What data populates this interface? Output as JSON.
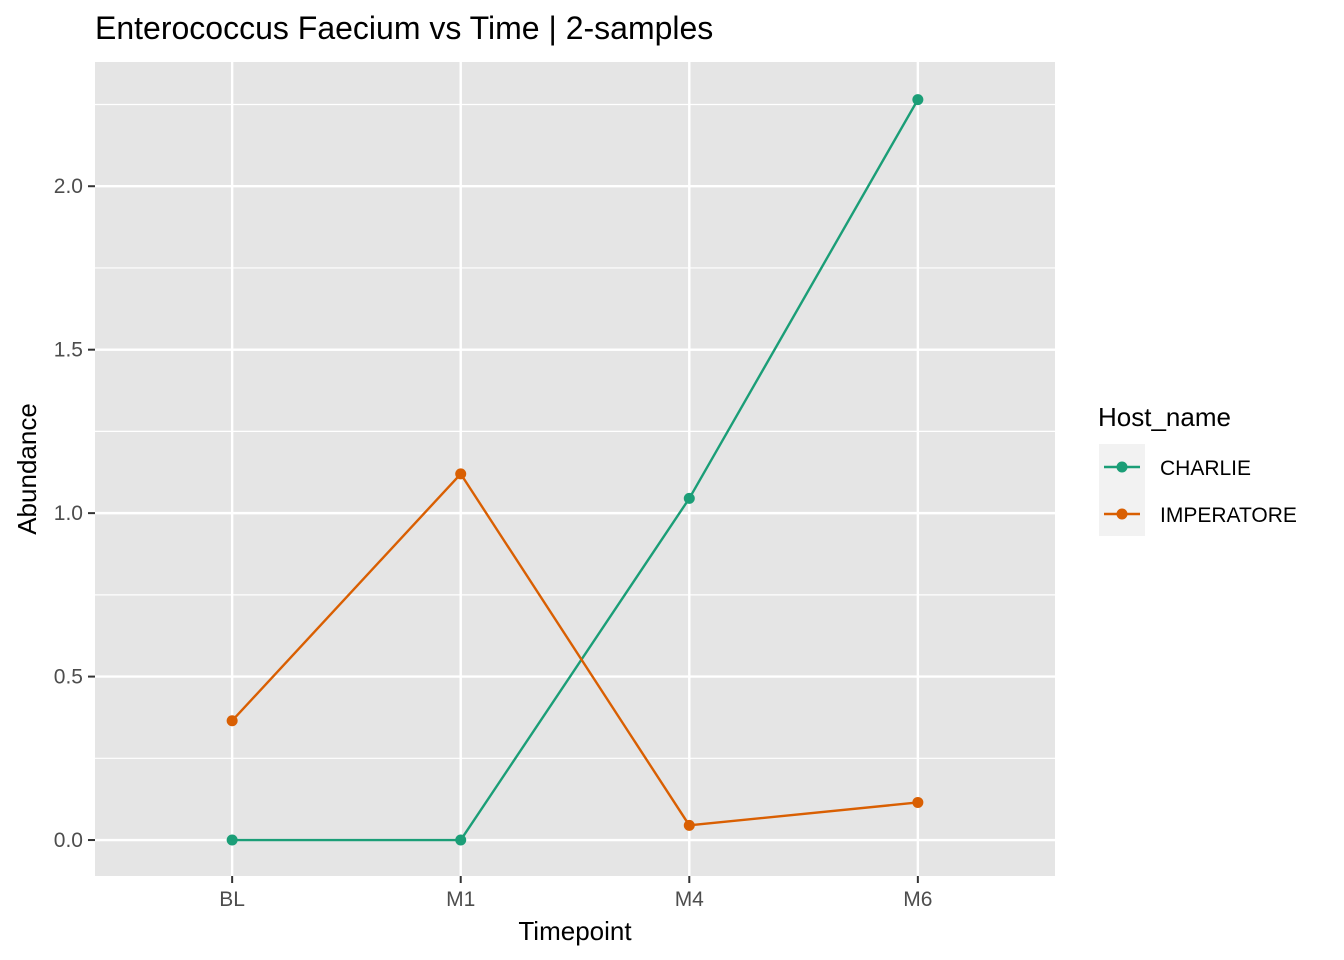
{
  "chart_data": {
    "type": "line",
    "title": "Enterococcus Faecium vs Time | 2-samples",
    "xlabel": "Timepoint",
    "ylabel": "Abundance",
    "categories": [
      "BL",
      "M1",
      "M4",
      "M6"
    ],
    "ylim": [
      -0.11,
      2.38
    ],
    "yticks": [
      0.0,
      0.5,
      1.0,
      1.5,
      2.0
    ],
    "ytick_labels": [
      "0.0",
      "0.5",
      "1.0",
      "1.5",
      "2.0"
    ],
    "grid": true,
    "legend": {
      "title": "Host_name",
      "placement": "right"
    },
    "series": [
      {
        "name": "CHARLIE",
        "color": "#1b9e77",
        "values": [
          0.0,
          0.0,
          1.045,
          2.265
        ]
      },
      {
        "name": "IMPERATORE",
        "color": "#d95f02",
        "values": [
          0.365,
          1.12,
          0.045,
          0.115
        ]
      }
    ],
    "panel_color": "#e5e5e5",
    "grid_color": "#ffffff"
  }
}
